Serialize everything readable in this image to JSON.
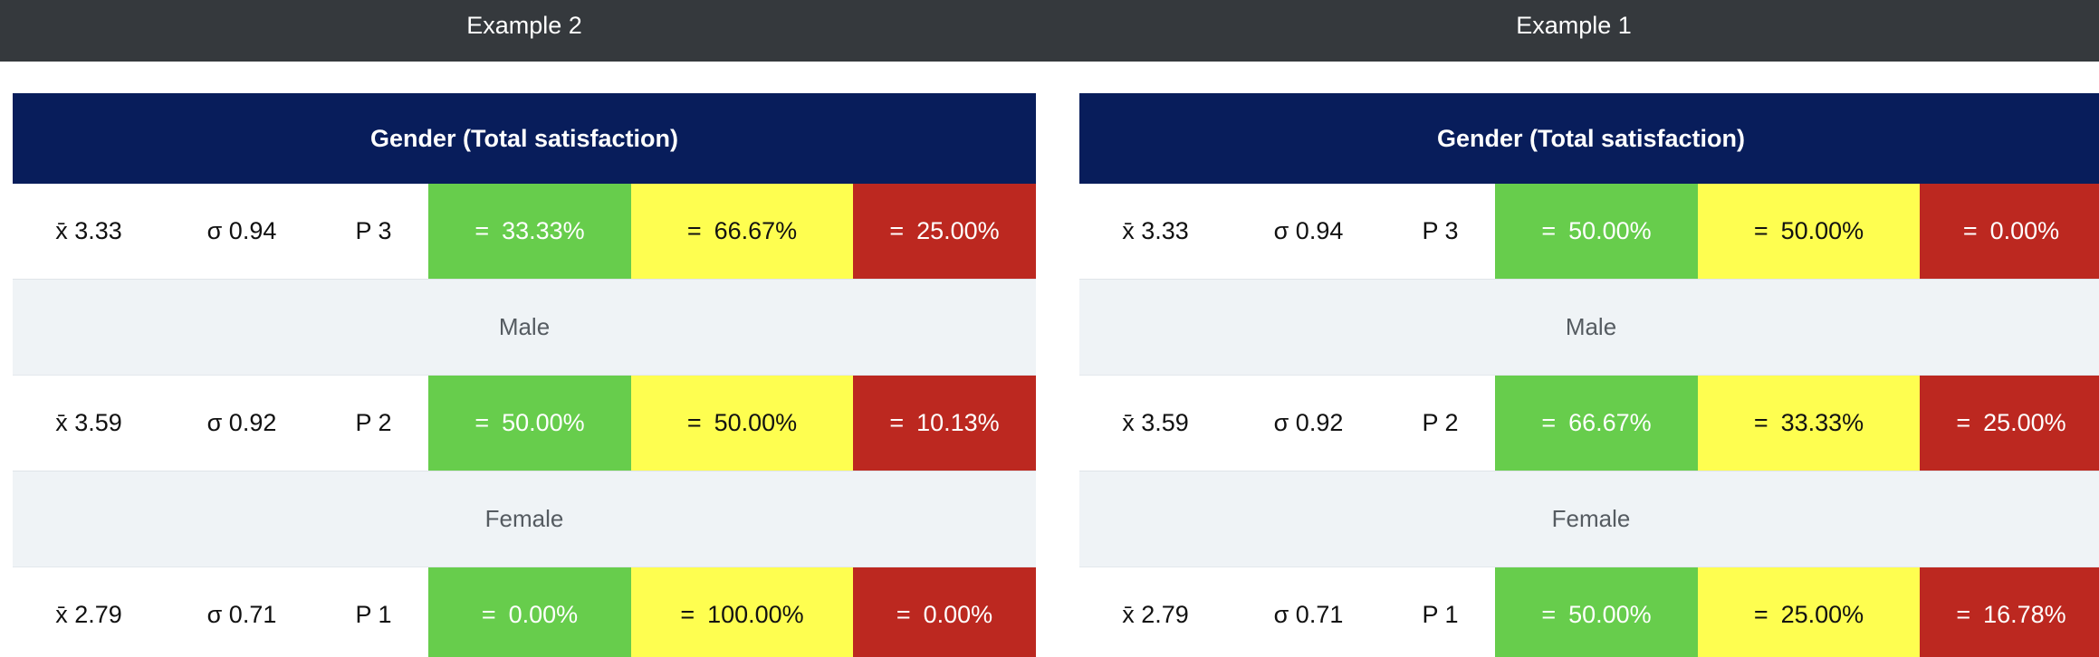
{
  "header": {
    "left_title": "Example 2",
    "right_title": "Example 1"
  },
  "panels": [
    {
      "title": "Gender (Total satisfaction)",
      "rows": [
        {
          "mean": "x̄ 3.33",
          "sd": "σ 0.94",
          "p": "P 3",
          "green": "33.33%",
          "yellow": "66.67%",
          "red": "25.00%"
        },
        {
          "group": "Male"
        },
        {
          "mean": "x̄ 3.59",
          "sd": "σ 0.92",
          "p": "P 2",
          "green": "50.00%",
          "yellow": "50.00%",
          "red": "10.13%"
        },
        {
          "group": "Female"
        },
        {
          "mean": "x̄ 2.79",
          "sd": "σ 0.71",
          "p": "P 1",
          "green": "0.00%",
          "yellow": "100.00%",
          "red": "0.00%"
        }
      ]
    },
    {
      "title": "Gender (Total satisfaction)",
      "rows": [
        {
          "mean": "x̄ 3.33",
          "sd": "σ 0.94",
          "p": "P 3",
          "green": "50.00%",
          "yellow": "50.00%",
          "red": "0.00%"
        },
        {
          "group": "Male"
        },
        {
          "mean": "x̄ 3.59",
          "sd": "σ 0.92",
          "p": "P 2",
          "green": "66.67%",
          "yellow": "33.33%",
          "red": "25.00%"
        },
        {
          "group": "Female"
        },
        {
          "mean": "x̄ 2.79",
          "sd": "σ 0.71",
          "p": "P 1",
          "green": "50.00%",
          "yellow": "25.00%",
          "red": "16.78%"
        }
      ]
    }
  ],
  "symbols": {
    "equals": "="
  },
  "colors": {
    "topbar": "#35393d",
    "header": "#081d5b",
    "green": "#67cd4c",
    "yellow": "#fefe50",
    "red": "#bc2820",
    "group_bg": "#eff3f6"
  }
}
